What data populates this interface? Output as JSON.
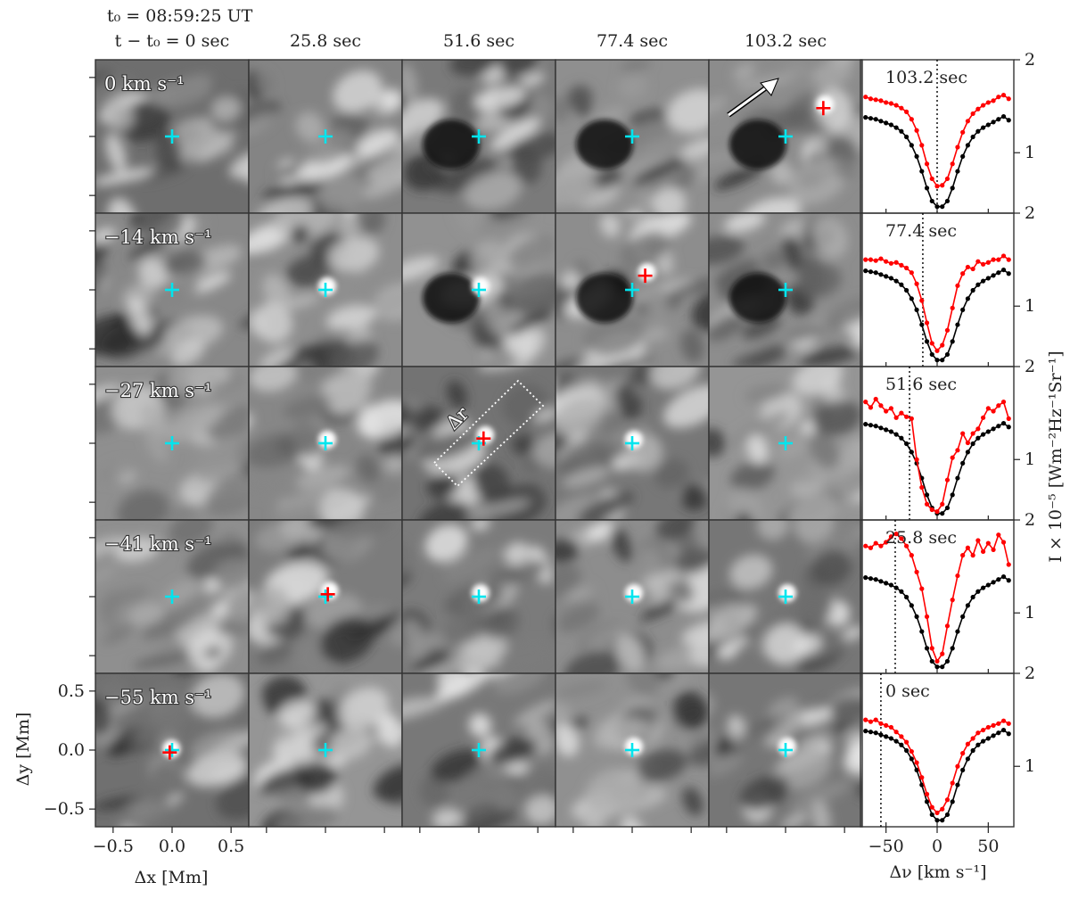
{
  "title": {
    "t0": "t₀ = 08:59:25 UT",
    "time_label_prefix": "t − t₀ = 0 sec"
  },
  "columns": [
    "t − t₀ = 0 sec",
    "25.8 sec",
    "51.6 sec",
    "77.4 sec",
    "103.2 sec"
  ],
  "rows": [
    "0 km s⁻¹",
    "−14 km s⁻¹",
    "−27 km s⁻¹",
    "−41 km s⁻¹",
    "−55 km s⁻¹"
  ],
  "row_velocities": [
    0,
    -14,
    -27,
    -41,
    -55
  ],
  "spectra_times": [
    "103.2 sec",
    "77.4 sec",
    "51.6 sec",
    "25.8 sec",
    "0 sec"
  ],
  "annotation": {
    "delta_r": "Δr"
  },
  "axes": {
    "xlabel": "Δx [Mm]",
    "ylabel": "Δy [Mm]",
    "x_ticks": [
      "−0.5",
      "0.0",
      "0.5"
    ],
    "y_ticks": [
      "0.5",
      "0.0",
      "−0.5"
    ],
    "spec_xlabel": "Δν [km s⁻¹]",
    "spec_x_ticks": [
      "−50",
      "0",
      "50"
    ],
    "spec_ylabel": "I × 10⁻⁵ [Wm⁻²Hz⁻¹Sr⁻¹]",
    "spec_y_ticks": [
      "2",
      "1"
    ]
  },
  "colors": {
    "reference_marker": "#00e5ee",
    "event_marker": "#ff0000",
    "black_profile": "#000000",
    "red_profile": "#ff0000"
  },
  "chart_data": {
    "type": "line",
    "xlabel": "Δν [km s⁻¹]",
    "ylabel": "I × 10⁻⁵ [Wm⁻²Hz⁻¹Sr⁻¹]",
    "xlim": [
      -75,
      75
    ],
    "ylim": [
      0.35,
      2.0
    ],
    "x": [
      -70,
      -65,
      -60,
      -55,
      -50,
      -45,
      -40,
      -35,
      -30,
      -25,
      -20,
      -15,
      -10,
      -5,
      0,
      5,
      10,
      15,
      20,
      25,
      30,
      35,
      40,
      45,
      50,
      55,
      60,
      65,
      70
    ],
    "black_profile": [
      1.38,
      1.37,
      1.36,
      1.34,
      1.32,
      1.3,
      1.27,
      1.23,
      1.17,
      1.08,
      0.96,
      0.8,
      0.62,
      0.48,
      0.42,
      0.42,
      0.48,
      0.62,
      0.8,
      0.96,
      1.08,
      1.17,
      1.23,
      1.27,
      1.3,
      1.33,
      1.36,
      1.39,
      1.35
    ],
    "panels": [
      {
        "time": "103.2 sec",
        "doppler": 0,
        "red": [
          1.6,
          1.58,
          1.57,
          1.56,
          1.54,
          1.53,
          1.51,
          1.48,
          1.44,
          1.36,
          1.24,
          1.08,
          0.88,
          0.72,
          0.64,
          0.65,
          0.72,
          0.88,
          1.06,
          1.22,
          1.34,
          1.42,
          1.47,
          1.51,
          1.54,
          1.56,
          1.6,
          1.62,
          1.58
        ]
      },
      {
        "time": "77.4 sec",
        "doppler": -14,
        "red": [
          1.5,
          1.5,
          1.49,
          1.51,
          1.48,
          1.46,
          1.47,
          1.44,
          1.41,
          1.36,
          1.24,
          1.06,
          0.82,
          0.6,
          0.52,
          0.58,
          0.74,
          0.98,
          1.22,
          1.35,
          1.42,
          1.4,
          1.48,
          1.45,
          1.47,
          1.5,
          1.5,
          1.54,
          1.5
        ]
      },
      {
        "time": "51.6 sec",
        "doppler": -27,
        "red": [
          1.62,
          1.56,
          1.65,
          1.58,
          1.52,
          1.55,
          1.45,
          1.5,
          1.46,
          1.44,
          1.0,
          0.7,
          0.52,
          0.46,
          0.44,
          0.52,
          0.78,
          1.02,
          1.1,
          1.28,
          1.18,
          1.28,
          1.33,
          1.45,
          1.55,
          1.52,
          1.58,
          1.62,
          1.44
        ]
      },
      {
        "time": "25.8 sec",
        "doppler": -41,
        "red": [
          1.72,
          1.7,
          1.75,
          1.72,
          1.76,
          1.82,
          1.85,
          1.8,
          1.72,
          1.62,
          1.44,
          1.26,
          0.96,
          0.62,
          0.48,
          0.56,
          0.86,
          1.14,
          1.4,
          1.62,
          1.7,
          1.62,
          1.78,
          1.66,
          1.75,
          1.68,
          1.84,
          1.76,
          1.52
        ]
      },
      {
        "time": "0 sec",
        "doppler": -55,
        "red": [
          1.5,
          1.48,
          1.5,
          1.46,
          1.44,
          1.42,
          1.37,
          1.32,
          1.26,
          1.16,
          1.04,
          0.88,
          0.7,
          0.56,
          0.5,
          0.54,
          0.64,
          0.82,
          1.0,
          1.14,
          1.24,
          1.3,
          1.36,
          1.39,
          1.42,
          1.44,
          1.46,
          1.49,
          1.46
        ]
      }
    ],
    "images": {
      "grid": [
        5,
        5
      ],
      "x_range_Mm": [
        -0.65,
        0.65
      ],
      "y_range_Mm": [
        -0.65,
        0.65
      ],
      "reference_marker_Mm": [
        0.0,
        0.0
      ],
      "event_markers": [
        {
          "row": 0,
          "col": 4,
          "Mm": [
            0.32,
            0.24
          ]
        },
        {
          "row": 1,
          "col": 3,
          "Mm": [
            0.11,
            0.12
          ]
        },
        {
          "row": 2,
          "col": 2,
          "Mm": [
            0.04,
            0.04
          ]
        },
        {
          "row": 3,
          "col": 1,
          "Mm": [
            0.02,
            0.02
          ]
        },
        {
          "row": 4,
          "col": 0,
          "Mm": [
            -0.02,
            -0.02
          ]
        }
      ]
    }
  }
}
